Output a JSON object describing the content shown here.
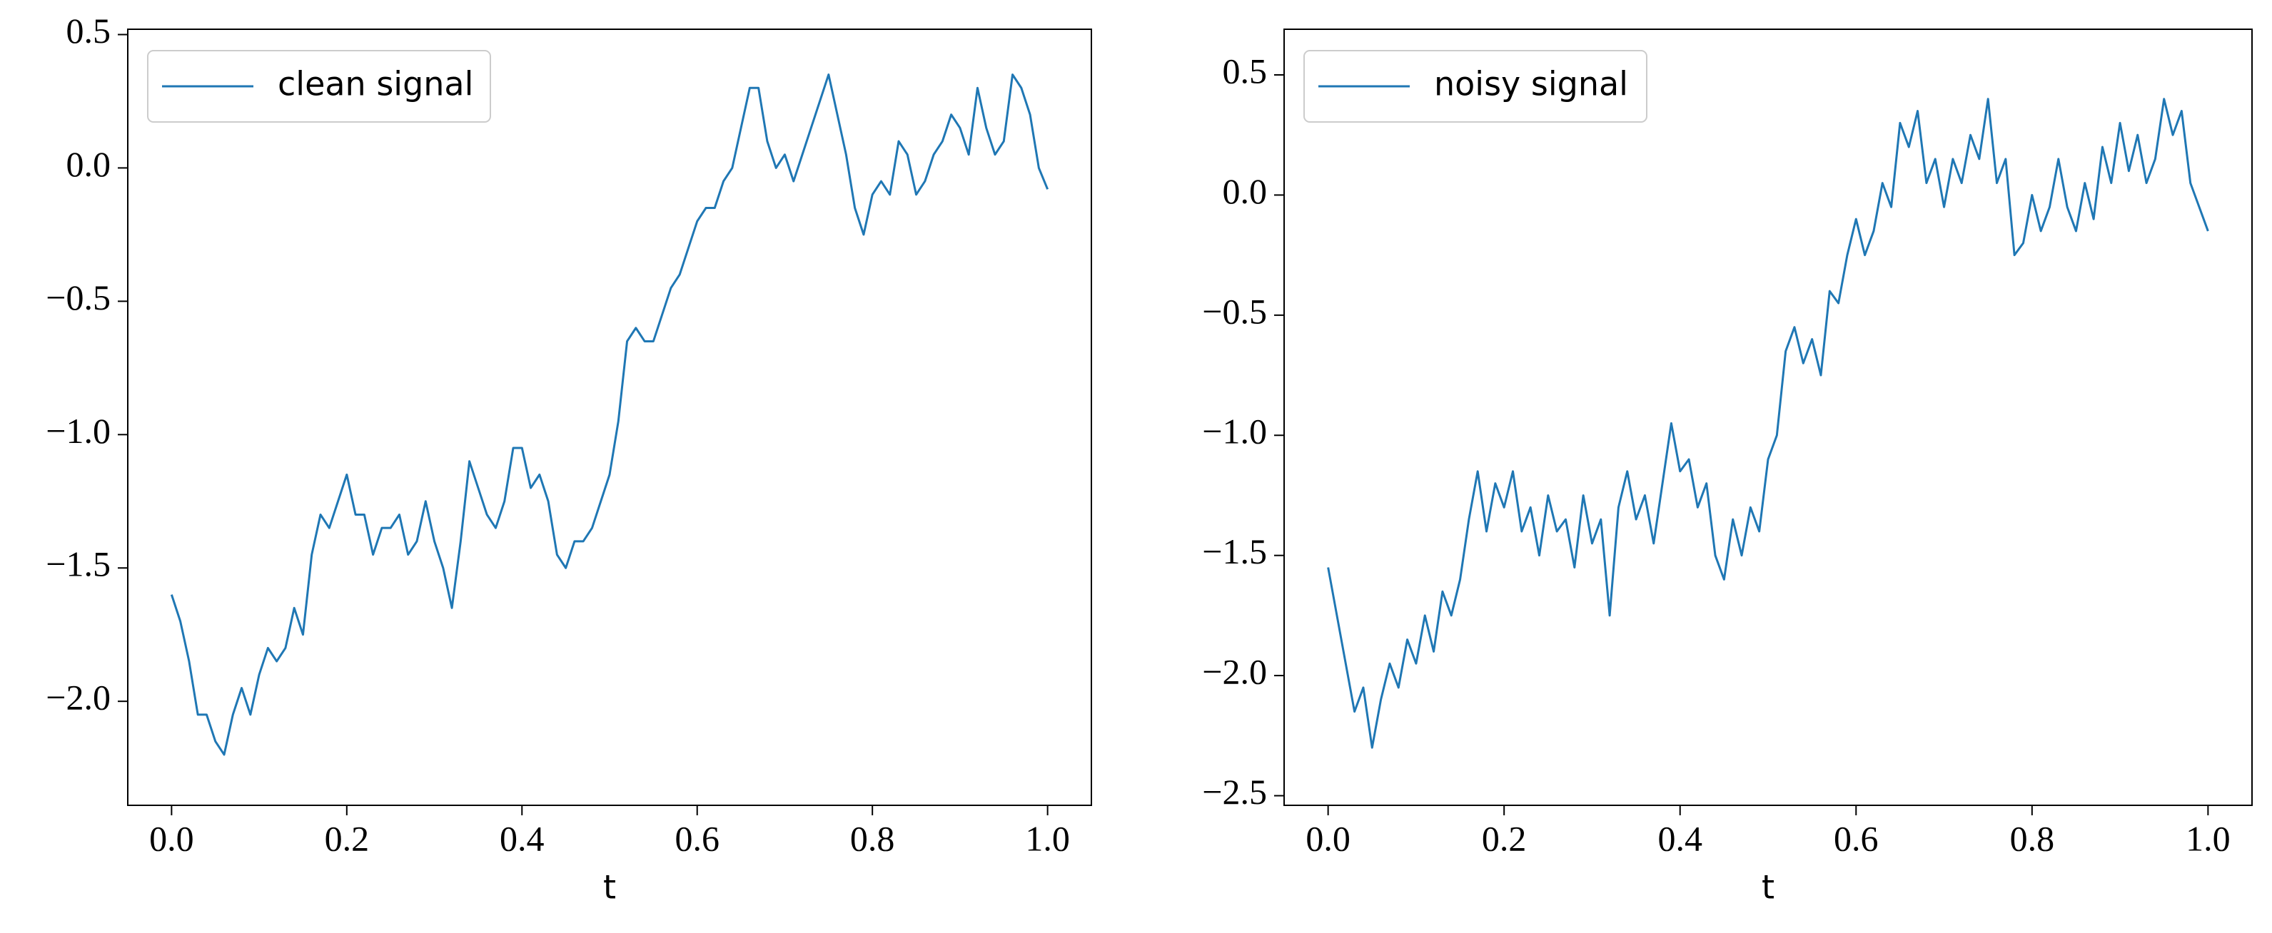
{
  "chart_data": [
    {
      "type": "line",
      "xlabel": "t",
      "legend": "upper left",
      "x": [
        0,
        0.01,
        0.02,
        0.03,
        0.04,
        0.05,
        0.06,
        0.07,
        0.08,
        0.09,
        0.1,
        0.11,
        0.12,
        0.13,
        0.14,
        0.15,
        0.16,
        0.17,
        0.18,
        0.19,
        0.2,
        0.21,
        0.22,
        0.23,
        0.24,
        0.25,
        0.26,
        0.27,
        0.28,
        0.29,
        0.3,
        0.31,
        0.32,
        0.33,
        0.34,
        0.35,
        0.36,
        0.37,
        0.38,
        0.39,
        0.4,
        0.41,
        0.42,
        0.43,
        0.44,
        0.45,
        0.46,
        0.47,
        0.48,
        0.49,
        0.5,
        0.51,
        0.52,
        0.53,
        0.54,
        0.55,
        0.56,
        0.57,
        0.58,
        0.59,
        0.6,
        0.61,
        0.62,
        0.63,
        0.64,
        0.65,
        0.66,
        0.67,
        0.68,
        0.69,
        0.7,
        0.71,
        0.72,
        0.73,
        0.74,
        0.75,
        0.76,
        0.77,
        0.78,
        0.79,
        0.8,
        0.81,
        0.82,
        0.83,
        0.84,
        0.85,
        0.86,
        0.87,
        0.88,
        0.89,
        0.9,
        0.91,
        0.92,
        0.93,
        0.94,
        0.95,
        0.96,
        0.97,
        0.98,
        0.99,
        1
      ],
      "series": [
        {
          "name": "clean signal",
          "color": "#1f77b4",
          "values": [
            -1.6,
            -1.7,
            -1.85,
            -2.05,
            -2.05,
            -2.15,
            -2.2,
            -2.05,
            -1.95,
            -2.05,
            -1.9,
            -1.8,
            -1.85,
            -1.8,
            -1.65,
            -1.75,
            -1.45,
            -1.3,
            -1.35,
            -1.25,
            -1.15,
            -1.3,
            -1.3,
            -1.45,
            -1.35,
            -1.35,
            -1.3,
            -1.45,
            -1.4,
            -1.25,
            -1.4,
            -1.5,
            -1.65,
            -1.4,
            -1.1,
            -1.2,
            -1.3,
            -1.35,
            -1.25,
            -1.05,
            -1.05,
            -1.2,
            -1.15,
            -1.25,
            -1.45,
            -1.5,
            -1.4,
            -1.4,
            -1.35,
            -1.25,
            -1.15,
            -0.95,
            -0.65,
            -0.6,
            -0.65,
            -0.65,
            -0.55,
            -0.45,
            -0.4,
            -0.3,
            -0.2,
            -0.15,
            -0.15,
            -0.05,
            0,
            0.15,
            0.3,
            0.3,
            0.1,
            0,
            0.05,
            -0.05,
            0.05,
            0.15,
            0.25,
            0.35,
            0.2,
            0.05,
            -0.15,
            -0.25,
            -0.1,
            -0.05,
            -0.1,
            0.1,
            0.05,
            -0.1,
            -0.05,
            0.05,
            0.1,
            0.2,
            0.15,
            0.05,
            0.3,
            0.15,
            0.05,
            0.1,
            0.35,
            0.3,
            0.2,
            0,
            -0.08
          ]
        }
      ],
      "xlim": [
        -0.05,
        1.05
      ],
      "ylim": [
        -2.39,
        0.52
      ],
      "xticks": [
        {
          "value": 0,
          "label": "0.0"
        },
        0.2,
        0.4,
        0.6,
        0.8,
        {
          "value": 1,
          "label": "1.0"
        }
      ],
      "yticks": [
        {
          "value": -2,
          "label": "−2.0"
        },
        {
          "value": -1.5,
          "label": "−1.5"
        },
        {
          "value": -1,
          "label": "−1.0"
        },
        {
          "value": -0.5,
          "label": "−0.5"
        },
        {
          "value": 0,
          "label": "0.0"
        },
        0.5
      ]
    },
    {
      "type": "line",
      "xlabel": "t",
      "legend": "upper left",
      "x": [
        0,
        0.01,
        0.02,
        0.03,
        0.04,
        0.05,
        0.06,
        0.07,
        0.08,
        0.09,
        0.1,
        0.11,
        0.12,
        0.13,
        0.14,
        0.15,
        0.16,
        0.17,
        0.18,
        0.19,
        0.2,
        0.21,
        0.22,
        0.23,
        0.24,
        0.25,
        0.26,
        0.27,
        0.28,
        0.29,
        0.3,
        0.31,
        0.32,
        0.33,
        0.34,
        0.35,
        0.36,
        0.37,
        0.38,
        0.39,
        0.4,
        0.41,
        0.42,
        0.43,
        0.44,
        0.45,
        0.46,
        0.47,
        0.48,
        0.49,
        0.5,
        0.51,
        0.52,
        0.53,
        0.54,
        0.55,
        0.56,
        0.57,
        0.58,
        0.59,
        0.6,
        0.61,
        0.62,
        0.63,
        0.64,
        0.65,
        0.66,
        0.67,
        0.68,
        0.69,
        0.7,
        0.71,
        0.72,
        0.73,
        0.74,
        0.75,
        0.76,
        0.77,
        0.78,
        0.79,
        0.8,
        0.81,
        0.82,
        0.83,
        0.84,
        0.85,
        0.86,
        0.87,
        0.88,
        0.89,
        0.9,
        0.91,
        0.92,
        0.93,
        0.94,
        0.95,
        0.96,
        0.97,
        0.98,
        0.99,
        1
      ],
      "series": [
        {
          "name": "noisy signal",
          "color": "#1f77b4",
          "values": [
            -1.55,
            -1.75,
            -1.95,
            -2.15,
            -2.05,
            -2.3,
            -2.1,
            -1.95,
            -2.05,
            -1.85,
            -1.95,
            -1.75,
            -1.9,
            -1.65,
            -1.75,
            -1.6,
            -1.35,
            -1.15,
            -1.4,
            -1.2,
            -1.3,
            -1.15,
            -1.4,
            -1.3,
            -1.5,
            -1.25,
            -1.4,
            -1.35,
            -1.55,
            -1.25,
            -1.45,
            -1.35,
            -1.75,
            -1.3,
            -1.15,
            -1.35,
            -1.25,
            -1.45,
            -1.2,
            -0.95,
            -1.15,
            -1.1,
            -1.3,
            -1.2,
            -1.5,
            -1.6,
            -1.35,
            -1.5,
            -1.3,
            -1.4,
            -1.1,
            -1,
            -0.65,
            -0.55,
            -0.7,
            -0.6,
            -0.75,
            -0.4,
            -0.45,
            -0.25,
            -0.1,
            -0.25,
            -0.15,
            0.05,
            -0.05,
            0.3,
            0.2,
            0.35,
            0.05,
            0.15,
            -0.05,
            0.15,
            0.05,
            0.25,
            0.15,
            0.4,
            0.05,
            0.15,
            -0.25,
            -0.2,
            0,
            -0.15,
            -0.05,
            0.15,
            -0.05,
            -0.15,
            0.05,
            -0.1,
            0.2,
            0.05,
            0.3,
            0.1,
            0.25,
            0.05,
            0.15,
            0.4,
            0.25,
            0.35,
            0.05,
            -0.05,
            -0.15
          ]
        }
      ],
      "xlim": [
        -0.05,
        1.05
      ],
      "ylim": [
        -2.54,
        0.69
      ],
      "xticks": [
        {
          "value": 0,
          "label": "0.0"
        },
        0.2,
        0.4,
        0.6,
        0.8,
        {
          "value": 1,
          "label": "1.0"
        }
      ],
      "yticks": [
        {
          "value": -2.5,
          "label": "−2.5"
        },
        {
          "value": -2,
          "label": "−2.0"
        },
        {
          "value": -1.5,
          "label": "−1.5"
        },
        {
          "value": -1,
          "label": "−1.0"
        },
        {
          "value": -0.5,
          "label": "−0.5"
        },
        {
          "value": 0,
          "label": "0.0"
        },
        0.5
      ]
    }
  ]
}
